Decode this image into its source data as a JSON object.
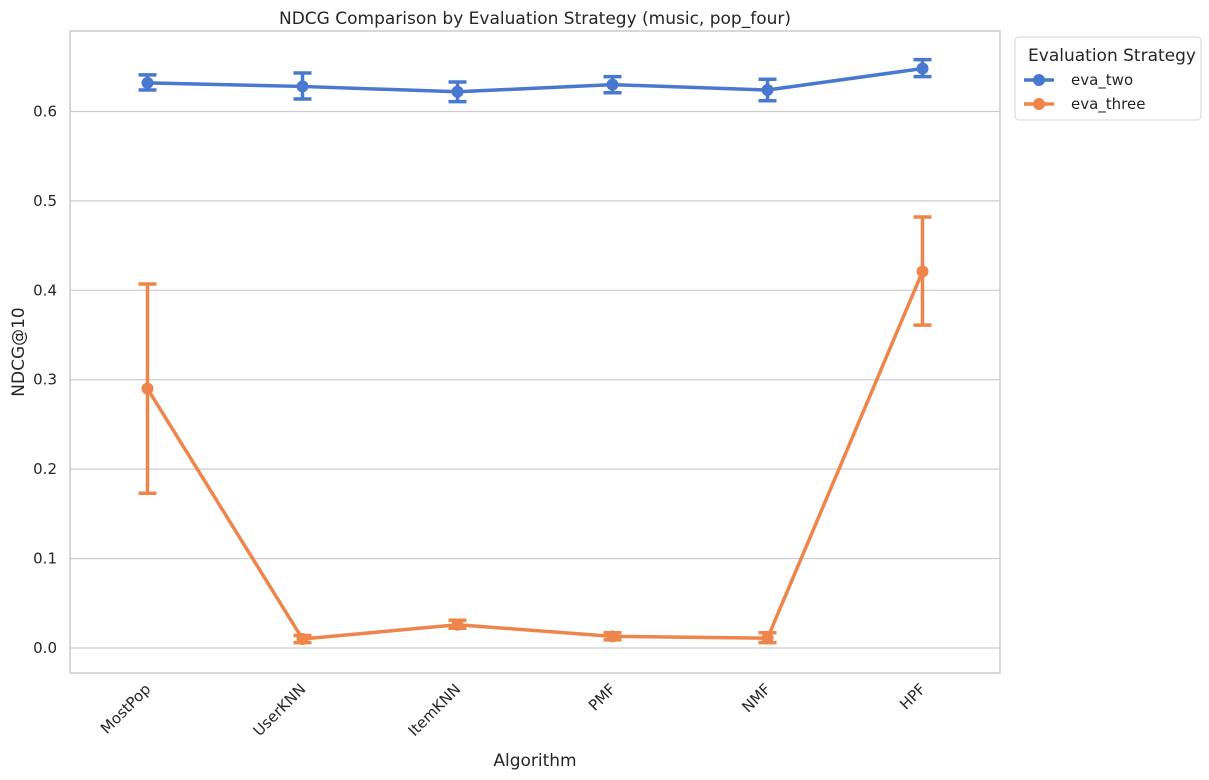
{
  "chart_data": {
    "type": "line",
    "title": "NDCG Comparison by Evaluation Strategy (music, pop_four)",
    "xlabel": "Algorithm",
    "ylabel": "NDCG@10",
    "categories": [
      "MostPop",
      "UserKNN",
      "ItemKNN",
      "PMF",
      "NMF",
      "HPF"
    ],
    "ylim": [
      -0.028,
      0.69
    ],
    "yticks": [
      0.0,
      0.1,
      0.2,
      0.3,
      0.4,
      0.5,
      0.6
    ],
    "ytick_labels": [
      "0.0",
      "0.1",
      "0.2",
      "0.3",
      "0.4",
      "0.5",
      "0.6"
    ],
    "grid": "horizontal",
    "legend": {
      "title": "Evaluation Strategy",
      "position": "upper-right-outside"
    },
    "series": [
      {
        "name": "eva_two",
        "color": "#4878d0",
        "values": [
          0.632,
          0.628,
          0.622,
          0.63,
          0.624,
          0.648
        ],
        "err_low": [
          0.624,
          0.614,
          0.611,
          0.621,
          0.612,
          0.639
        ],
        "err_high": [
          0.641,
          0.643,
          0.633,
          0.639,
          0.636,
          0.658
        ]
      },
      {
        "name": "eva_three",
        "color": "#ee854a",
        "values": [
          0.29,
          0.01,
          0.026,
          0.013,
          0.011,
          0.421
        ],
        "err_low": [
          0.173,
          0.006,
          0.022,
          0.009,
          0.006,
          0.361
        ],
        "err_high": [
          0.407,
          0.014,
          0.031,
          0.017,
          0.017,
          0.482
        ]
      }
    ]
  }
}
